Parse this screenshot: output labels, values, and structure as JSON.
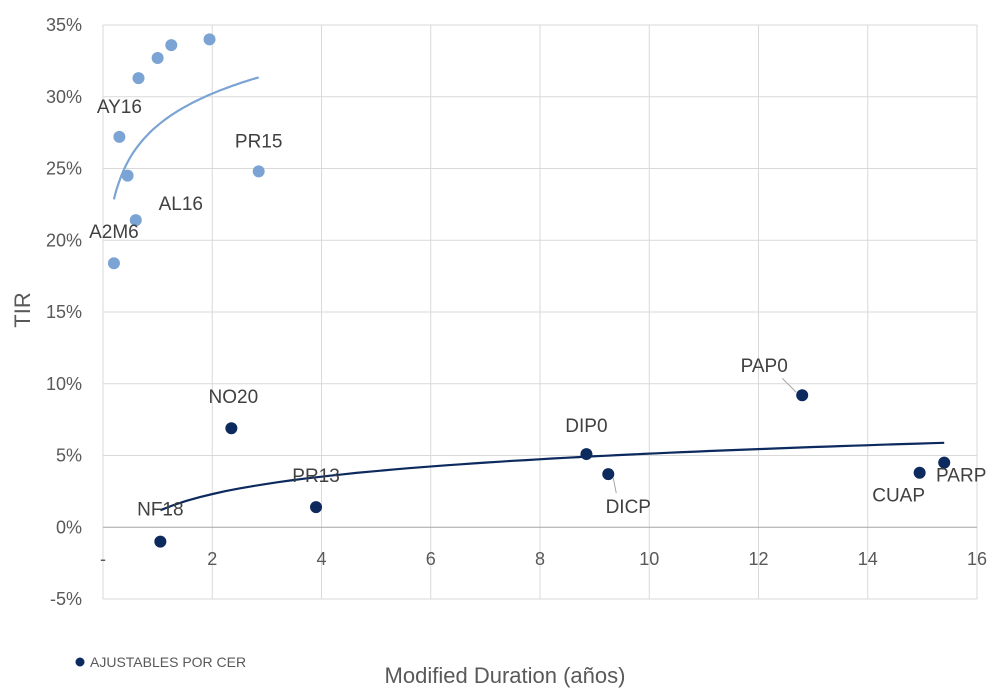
{
  "chart_data": {
    "type": "scatter",
    "xlabel": "Modified Duration (años)",
    "ylabel": "TIR",
    "xlim": [
      0,
      16
    ],
    "ylim": [
      -0.05,
      0.35
    ],
    "x_ticks": [
      {
        "value": 0,
        "label": "-"
      },
      {
        "value": 2,
        "label": "2"
      },
      {
        "value": 4,
        "label": "4"
      },
      {
        "value": 6,
        "label": "6"
      },
      {
        "value": 8,
        "label": "8"
      },
      {
        "value": 10,
        "label": "10"
      },
      {
        "value": 12,
        "label": "12"
      },
      {
        "value": 14,
        "label": "14"
      },
      {
        "value": 16,
        "label": "16"
      }
    ],
    "y_ticks": [
      {
        "value": -0.05,
        "label": "-5%"
      },
      {
        "value": 0,
        "label": "0%"
      },
      {
        "value": 0.05,
        "label": "5%"
      },
      {
        "value": 0.1,
        "label": "10%"
      },
      {
        "value": 0.15,
        "label": "15%"
      },
      {
        "value": 0.2,
        "label": "20%"
      },
      {
        "value": 0.25,
        "label": "25%"
      },
      {
        "value": 0.3,
        "label": "30%"
      },
      {
        "value": 0.35,
        "label": "35%"
      }
    ],
    "grid": true,
    "legend": {
      "position": "bottom-left",
      "entries": [
        "AJUSTABLES POR CER"
      ]
    },
    "series": [
      {
        "color": "#7BA4D4",
        "points": [
          {
            "x": 0.2,
            "y": 0.184,
            "label": "A2M6"
          },
          {
            "x": 0.3,
            "y": 0.272,
            "label": "AY16"
          },
          {
            "x": 0.45,
            "y": 0.245,
            "label": ""
          },
          {
            "x": 0.6,
            "y": 0.214,
            "label": "AL16"
          },
          {
            "x": 0.65,
            "y": 0.313,
            "label": ""
          },
          {
            "x": 1.0,
            "y": 0.327,
            "label": ""
          },
          {
            "x": 1.25,
            "y": 0.336,
            "label": ""
          },
          {
            "x": 1.95,
            "y": 0.34,
            "label": ""
          },
          {
            "x": 2.85,
            "y": 0.248,
            "label": "PR15"
          }
        ],
        "trendline": {
          "type": "log",
          "x_range": [
            0.2,
            2.85
          ],
          "a": 0.28,
          "b": 0.032
        }
      },
      {
        "name": "AJUSTABLES POR CER",
        "color": "#0D2A5E",
        "points": [
          {
            "x": 1.05,
            "y": -0.01,
            "label": "NF18"
          },
          {
            "x": 2.35,
            "y": 0.069,
            "label": "NO20"
          },
          {
            "x": 3.9,
            "y": 0.014,
            "label": "PR13"
          },
          {
            "x": 8.85,
            "y": 0.051,
            "label": "DIP0"
          },
          {
            "x": 9.25,
            "y": 0.037,
            "label": "DICP"
          },
          {
            "x": 12.8,
            "y": 0.092,
            "label": "PAP0"
          },
          {
            "x": 14.95,
            "y": 0.038,
            "label": "CUAP"
          },
          {
            "x": 15.4,
            "y": 0.045,
            "label": "PARP"
          }
        ],
        "trendline": {
          "type": "log",
          "x_range": [
            1.05,
            15.4
          ],
          "a": 0.011,
          "b": 0.0175
        }
      }
    ]
  }
}
